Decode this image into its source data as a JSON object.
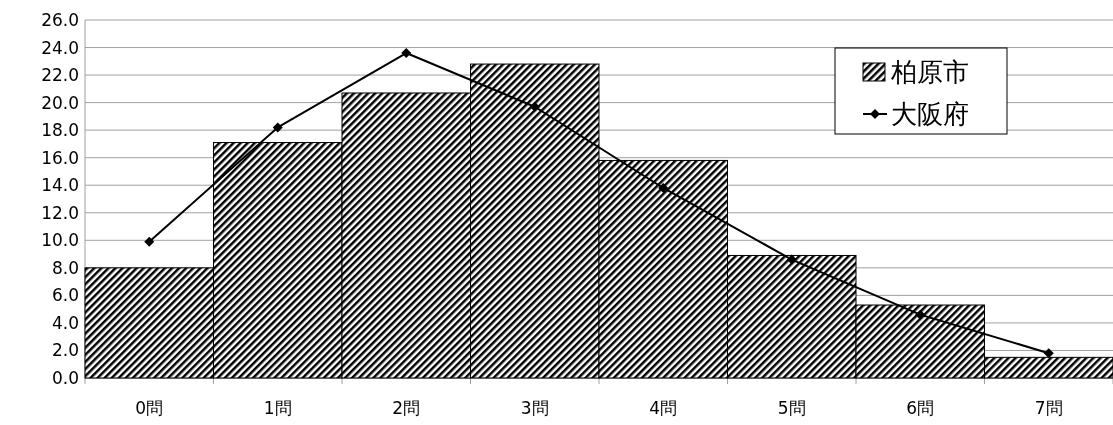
{
  "chart_data": {
    "type": "bar",
    "categories": [
      "0問",
      "1問",
      "2問",
      "3問",
      "4問",
      "5問",
      "6問",
      "7問"
    ],
    "series": [
      {
        "name": "柏原市",
        "color": "#000000",
        "values": [
          8.0,
          17.1,
          20.7,
          22.8,
          15.8,
          8.9,
          5.3,
          1.5
        ]
      },
      {
        "name": "大阪府",
        "type": "line",
        "color": "#000000",
        "marker": "diamond",
        "values": [
          9.9,
          18.2,
          23.6,
          19.7,
          13.8,
          8.6,
          4.6,
          1.8
        ]
      }
    ],
    "ylim": [
      0,
      26
    ],
    "yticks": [
      {
        "value": 0,
        "label": "0.0"
      },
      {
        "value": 2,
        "label": "2.0"
      },
      {
        "value": 4,
        "label": "4.0"
      },
      {
        "value": 6,
        "label": "6.0"
      },
      {
        "value": 8,
        "label": "8.0"
      },
      {
        "value": 10,
        "label": "10.0"
      },
      {
        "value": 12,
        "label": "12.0"
      },
      {
        "value": 14,
        "label": "14.0"
      },
      {
        "value": 16,
        "label": "16.0"
      },
      {
        "value": 18,
        "label": "18.0"
      },
      {
        "value": 20,
        "label": "20.0"
      },
      {
        "value": 22,
        "label": "22.0"
      },
      {
        "value": 24,
        "label": "24.0"
      },
      {
        "value": 26,
        "label": "26.0"
      }
    ],
    "grid": "y",
    "legend": "top right"
  }
}
